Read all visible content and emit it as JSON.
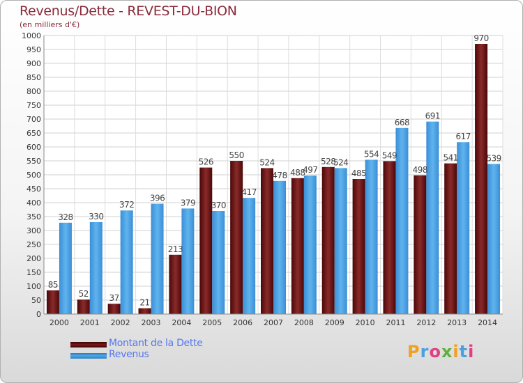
{
  "title": "Revenus/Dette - REVEST-DU-BION",
  "subtitle": "(en milliers d'€)",
  "legend": {
    "debt_label": "Montant de la Dette",
    "revenue_label": "Revenus"
  },
  "logo": {
    "text": "Proxiti",
    "colors": [
      "#f0a020",
      "#4aa0e0",
      "#e04080",
      "#60b040",
      "#f0a020",
      "#4aa0e0",
      "#e04080"
    ]
  },
  "colors": {
    "debt": "#7a1818",
    "revenue": "#4ea8e8",
    "title": "#8a2a3a",
    "legend_text": "#5577ee"
  },
  "chart_data": {
    "type": "bar",
    "categories": [
      "2000",
      "2001",
      "2002",
      "2003",
      "2004",
      "2005",
      "2006",
      "2007",
      "2008",
      "2009",
      "2010",
      "2011",
      "2012",
      "2013",
      "2014"
    ],
    "series": [
      {
        "name": "Montant de la Dette",
        "values": [
          85,
          52,
          37,
          21,
          213,
          526,
          550,
          524,
          488,
          528,
          485,
          549,
          498,
          541,
          970
        ]
      },
      {
        "name": "Revenus",
        "values": [
          328,
          330,
          372,
          396,
          379,
          370,
          417,
          478,
          497,
          524,
          554,
          668,
          691,
          617,
          539
        ]
      }
    ],
    "ylim": [
      0,
      1000
    ],
    "yticks": [
      0,
      50,
      100,
      150,
      200,
      250,
      300,
      350,
      400,
      450,
      500,
      550,
      600,
      650,
      700,
      750,
      800,
      850,
      900,
      950,
      1000
    ],
    "grid": true,
    "legend_position": "bottom-left"
  }
}
